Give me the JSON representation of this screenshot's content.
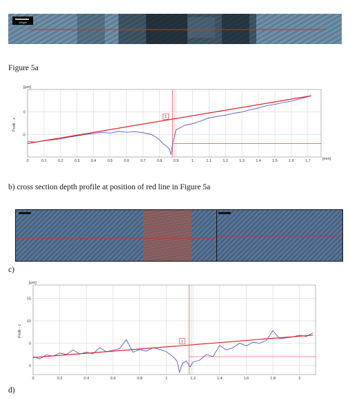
{
  "figure_a": {
    "scalebar_label": "100µm",
    "caption": "Figure 5a"
  },
  "caption_b": "b) cross section depth profile at position of red line in Figure 5a",
  "caption_c": "c)",
  "caption_d": "d)",
  "colors": {
    "profile": "#4444cc",
    "fit_line": "#dd2222",
    "grid": "#cccccc",
    "micrograph_base": "#5e7f96"
  },
  "chart_data": [
    {
      "id": "b",
      "type": "line",
      "yunit_label": "[µm]",
      "ylabel": "Profil - z",
      "xunit_label": "[mm]",
      "x_ticks": [
        "0",
        "0.1",
        "0.2",
        "0.3",
        "0.4",
        "0.5",
        "0.6",
        "0.7",
        "0.8",
        "0.9",
        "1",
        "1.1",
        "1.2",
        "1.3",
        "1.4",
        "1.5",
        "1.6",
        "1.7"
      ],
      "y_ticks": [
        "0",
        "-5"
      ],
      "xlim": [
        0,
        1.78
      ],
      "ylim": [
        -10,
        5
      ],
      "cursor_x": 0.88,
      "cursor_label": "1",
      "fit_line": {
        "x": [
          0,
          1.72
        ],
        "y": [
          -7.0,
          3.6
        ]
      },
      "reference_level": -7.0,
      "series": [
        {
          "x": [
            0,
            0.05,
            0.1,
            0.15,
            0.2,
            0.25,
            0.3,
            0.35,
            0.4,
            0.45,
            0.5,
            0.55,
            0.6,
            0.65,
            0.7,
            0.75,
            0.78,
            0.8,
            0.82,
            0.84,
            0.86,
            0.87,
            0.88,
            0.9,
            0.95,
            1.0,
            1.05,
            1.1,
            1.15,
            1.2,
            1.25,
            1.3,
            1.35,
            1.4,
            1.45,
            1.5,
            1.55,
            1.6,
            1.65,
            1.7,
            1.72
          ],
          "y": [
            -6.5,
            -6.7,
            -6.4,
            -6.2,
            -6.0,
            -5.6,
            -5.3,
            -5.0,
            -4.8,
            -4.5,
            -4.7,
            -4.3,
            -4.5,
            -4.4,
            -4.6,
            -5.0,
            -5.6,
            -6.2,
            -7.0,
            -7.5,
            -8.2,
            -9.5,
            -7.0,
            -4.0,
            -3.0,
            -2.6,
            -2.0,
            -1.3,
            -1.0,
            -0.7,
            -0.3,
            0.0,
            0.5,
            0.9,
            1.4,
            1.7,
            2.1,
            2.4,
            2.9,
            3.4,
            3.6
          ]
        }
      ]
    },
    {
      "id": "d",
      "type": "line",
      "yunit_label": "[µm]",
      "ylabel": "Profil - z",
      "x_ticks": [
        "0",
        "0.2",
        "0.4",
        "0.6",
        "0.8",
        "1",
        "1.2",
        "1.4",
        "1.6",
        "1.8",
        "2"
      ],
      "y_ticks": [
        "15",
        "10",
        "5",
        "0"
      ],
      "xlim": [
        0,
        2.12
      ],
      "ylim": [
        -2,
        18
      ],
      "cursor_x": 1.17,
      "cursor_label": "1",
      "fit_line": {
        "x": [
          0,
          2.1
        ],
        "y": [
          1.8,
          6.8
        ]
      },
      "reference_level": 2.0,
      "series": [
        {
          "x": [
            0,
            0.05,
            0.1,
            0.15,
            0.2,
            0.25,
            0.3,
            0.35,
            0.4,
            0.45,
            0.5,
            0.55,
            0.6,
            0.65,
            0.7,
            0.75,
            0.8,
            0.85,
            0.9,
            0.95,
            1.0,
            1.05,
            1.08,
            1.1,
            1.12,
            1.15,
            1.18,
            1.2,
            1.25,
            1.3,
            1.35,
            1.4,
            1.45,
            1.5,
            1.55,
            1.6,
            1.65,
            1.7,
            1.75,
            1.8,
            1.85,
            1.9,
            1.95,
            2.0,
            2.05,
            2.1
          ],
          "y": [
            2.0,
            1.5,
            2.4,
            2.1,
            2.8,
            2.5,
            3.5,
            2.6,
            3.0,
            2.6,
            4.0,
            3.1,
            3.4,
            3.8,
            5.8,
            3.0,
            3.6,
            3.2,
            4.0,
            3.6,
            3.1,
            2.0,
            1.0,
            -1.5,
            0.5,
            1.0,
            -0.3,
            0.8,
            1.2,
            2.5,
            2.0,
            4.5,
            3.5,
            4.0,
            5.0,
            4.4,
            5.2,
            5.0,
            5.6,
            7.8,
            6.0,
            6.2,
            6.4,
            6.8,
            6.5,
            7.3
          ]
        }
      ]
    }
  ]
}
